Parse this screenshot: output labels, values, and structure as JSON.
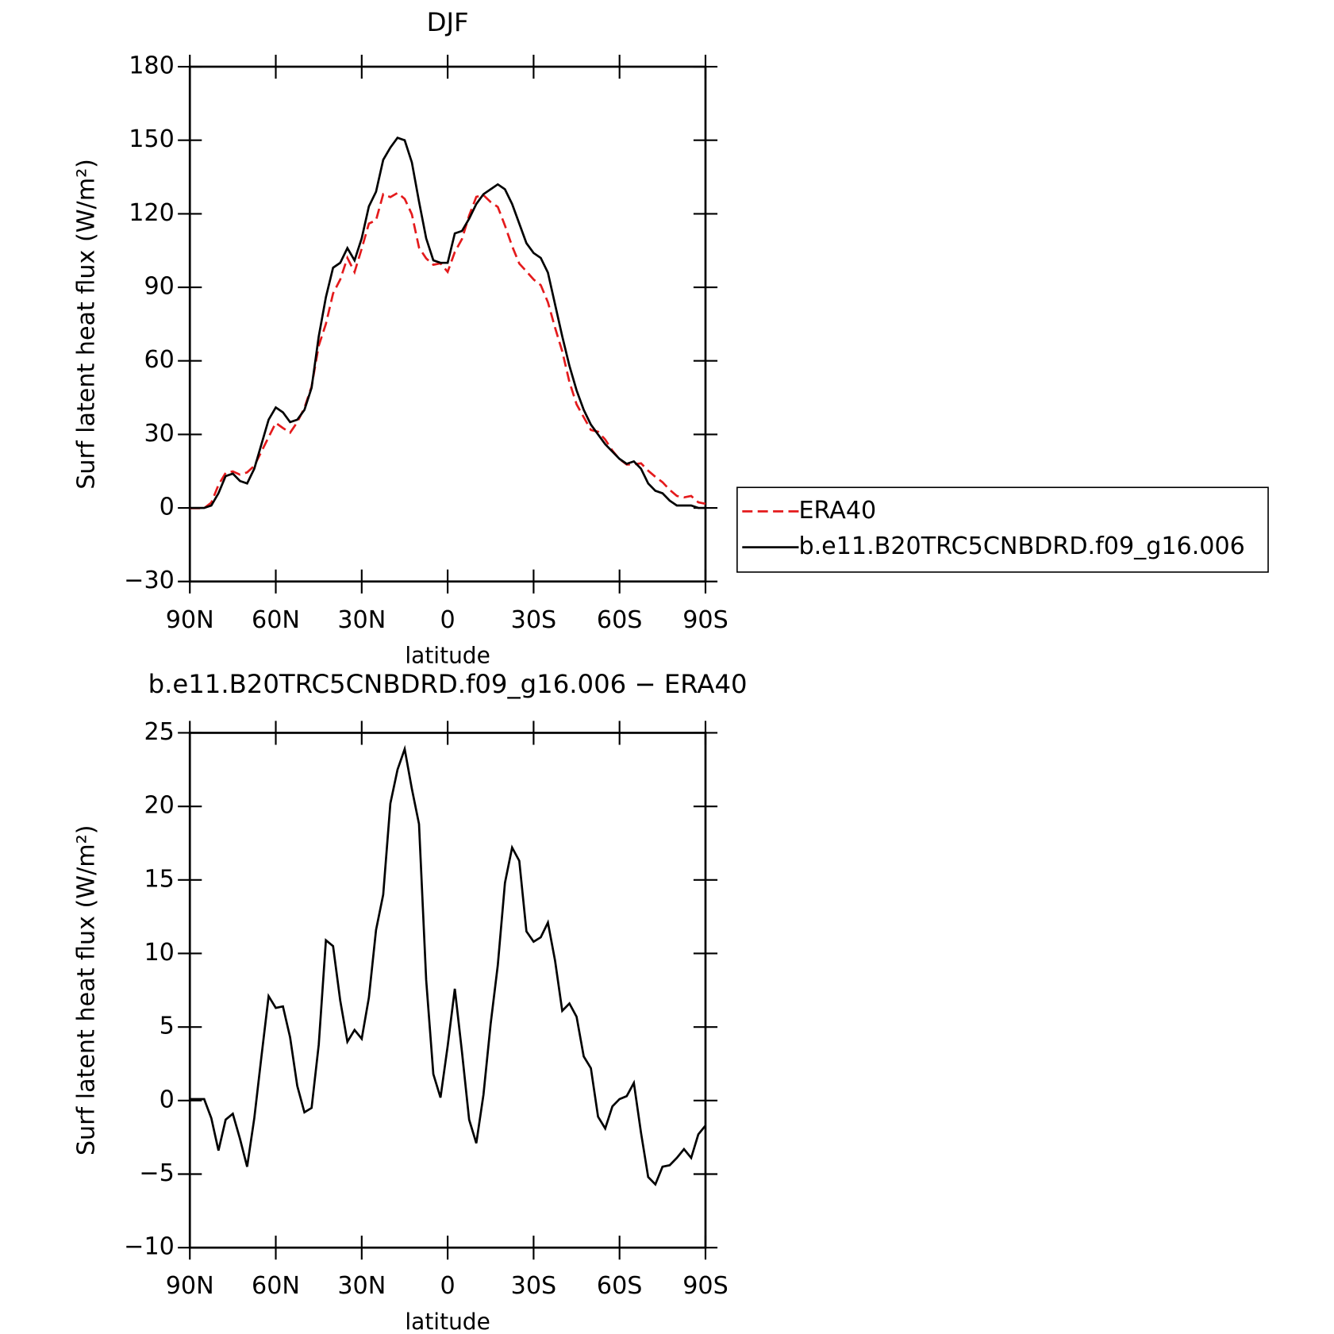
{
  "chart_data": [
    {
      "type": "line",
      "title": "DJF",
      "xlabel": "latitude",
      "ylabel": "Surf latent heat flux (W/m²)",
      "x": [
        90,
        87.5,
        85,
        82.5,
        80,
        77.5,
        75,
        72.5,
        70,
        67.5,
        65,
        62.5,
        60,
        57.5,
        55,
        52.5,
        50,
        47.5,
        45,
        42.5,
        40,
        37.5,
        35,
        32.5,
        30,
        27.5,
        25,
        22.5,
        20,
        17.5,
        15,
        12.5,
        10,
        7.5,
        5,
        2.5,
        0,
        -2.5,
        -5,
        -7.5,
        -10,
        -12.5,
        -15,
        -17.5,
        -20,
        -22.5,
        -25,
        -27.5,
        -30,
        -32.5,
        -35,
        -37.5,
        -40,
        -42.5,
        -45,
        -47.5,
        -50,
        -52.5,
        -55,
        -57.5,
        -60,
        -62.5,
        -65,
        -67.5,
        -70,
        -72.5,
        -75,
        -77.5,
        -80,
        -82.5,
        -85,
        -87.5,
        -90
      ],
      "series": [
        {
          "name": "ERA40",
          "color": "#e41a1c",
          "dash": true,
          "values": [
            -0.1,
            -0.1,
            -0.1,
            2.2,
            9.4,
            14.3,
            14.9,
            13.6,
            14.5,
            17.2,
            23,
            28.9,
            34.7,
            32.6,
            30.7,
            35,
            40.8,
            49.5,
            66.2,
            75.1,
            87.5,
            93.2,
            102,
            96.2,
            105.8,
            116,
            117.4,
            128,
            126.8,
            128.5,
            126.1,
            119.8,
            106.2,
            101.8,
            99.2,
            99.8,
            96.3,
            104.4,
            109.7,
            119.3,
            126.9,
            127.6,
            124.8,
            122.8,
            115.2,
            106.8,
            99.7,
            96.5,
            93.2,
            90.9,
            83.9,
            73.5,
            63.9,
            51.4,
            42.3,
            37,
            31.8,
            31.1,
            27.9,
            23.4,
            19.9,
            17.7,
            17.8,
            18.2,
            15.2,
            12.7,
            10.5,
            7.4,
            4.9,
            4.3,
            4.9,
            2.3,
            1.7
          ]
        },
        {
          "name": "b.e11.B20TRC5CNBDRD.f09_g16.006",
          "color": "#000000",
          "dash": false,
          "values": [
            0,
            0,
            0,
            1,
            6,
            13,
            14,
            11,
            10,
            16,
            26,
            36,
            41,
            39,
            35,
            36,
            40,
            49,
            70,
            86,
            98,
            100,
            106,
            101,
            110,
            123,
            129,
            142,
            147,
            151,
            150,
            141,
            125,
            110,
            101,
            100,
            100,
            112,
            113,
            118,
            124,
            128,
            130,
            132,
            130,
            124,
            116,
            108,
            104,
            102,
            96,
            83,
            70,
            58,
            48,
            40,
            34,
            30,
            26,
            23,
            20,
            18,
            19,
            16,
            10,
            7,
            6,
            3,
            1,
            1,
            1,
            0,
            0
          ]
        }
      ],
      "xlim": [
        90,
        -90
      ],
      "xticks": [
        {
          "value": 90,
          "label": "90N"
        },
        {
          "value": 60,
          "label": "60N"
        },
        {
          "value": 30,
          "label": "30N"
        },
        0,
        {
          "value": -30,
          "label": "30S"
        },
        {
          "value": -60,
          "label": "60S"
        },
        {
          "value": -90,
          "label": "90S"
        }
      ],
      "ylim": [
        -30,
        180
      ],
      "yticks": [
        {
          "value": -30,
          "label": "−30"
        },
        0,
        30,
        60,
        90,
        120,
        150,
        180
      ],
      "legend": "right"
    },
    {
      "type": "line",
      "title": "b.e11.B20TRC5CNBDRD.f09_g16.006 − ERA40",
      "xlabel": "latitude",
      "ylabel": "Surf latent heat flux (W/m²)",
      "x": [
        90,
        87.5,
        85,
        82.5,
        80,
        77.5,
        75,
        72.5,
        70,
        67.5,
        65,
        62.5,
        60,
        57.5,
        55,
        52.5,
        50,
        47.5,
        45,
        42.5,
        40,
        37.5,
        35,
        32.5,
        30,
        27.5,
        25,
        22.5,
        20,
        17.5,
        15,
        12.5,
        10,
        7.5,
        5,
        2.5,
        0,
        -2.5,
        -5,
        -7.5,
        -10,
        -12.5,
        -15,
        -17.5,
        -20,
        -22.5,
        -25,
        -27.5,
        -30,
        -32.5,
        -35,
        -37.5,
        -40,
        -42.5,
        -45,
        -47.5,
        -50,
        -52.5,
        -55,
        -57.5,
        -60,
        -62.5,
        -65,
        -67.5,
        -70,
        -72.5,
        -75,
        -77.5,
        -80,
        -82.5,
        -85,
        -87.5,
        -90
      ],
      "series": [
        {
          "color": "#000000",
          "dash": false,
          "values": [
            0.1,
            0.1,
            0.1,
            -1.2,
            -3.4,
            -1.3,
            -0.9,
            -2.6,
            -4.5,
            -1.2,
            3.0,
            7.1,
            6.3,
            6.4,
            4.3,
            1.0,
            -0.8,
            -0.5,
            3.8,
            10.9,
            10.5,
            6.8,
            4.0,
            4.8,
            4.2,
            7.0,
            11.6,
            14.0,
            20.2,
            22.5,
            23.9,
            21.2,
            18.8,
            8.2,
            1.8,
            0.2,
            3.7,
            7.6,
            3.3,
            -1.3,
            -2.9,
            0.4,
            5.2,
            9.2,
            14.8,
            17.2,
            16.3,
            11.5,
            10.8,
            11.1,
            12.1,
            9.5,
            6.1,
            6.6,
            5.7,
            3.0,
            2.2,
            -1.1,
            -1.9,
            -0.4,
            0.1,
            0.3,
            1.2,
            -2.2,
            -5.2,
            -5.7,
            -4.5,
            -4.4,
            -3.9,
            -3.3,
            -3.9,
            -2.3,
            -1.7
          ]
        }
      ],
      "xlim": [
        90,
        -90
      ],
      "xticks": [
        {
          "value": 90,
          "label": "90N"
        },
        {
          "value": 60,
          "label": "60N"
        },
        {
          "value": 30,
          "label": "30N"
        },
        0,
        {
          "value": -30,
          "label": "30S"
        },
        {
          "value": -60,
          "label": "60S"
        },
        {
          "value": -90,
          "label": "90S"
        }
      ],
      "ylim": [
        -10,
        25
      ],
      "yticks": [
        {
          "value": -10,
          "label": "−10"
        },
        {
          "value": -5,
          "label": "−5"
        },
        0,
        5,
        10,
        15,
        20,
        25
      ]
    }
  ]
}
